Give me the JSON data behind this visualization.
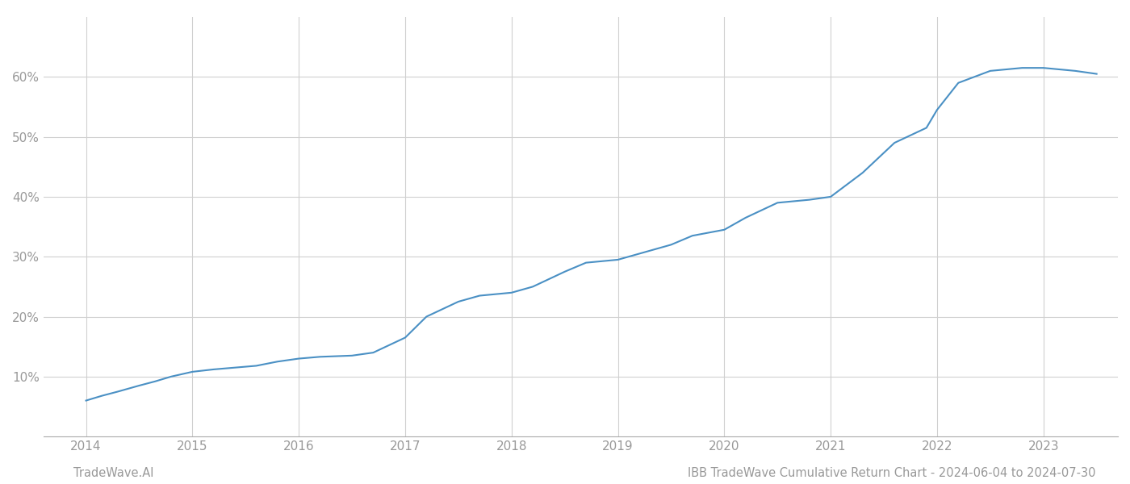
{
  "title": "",
  "footer_left": "TradeWave.AI",
  "footer_right": "IBB TradeWave Cumulative Return Chart - 2024-06-04 to 2024-07-30",
  "line_color": "#4a90c4",
  "line_width": 1.5,
  "background_color": "#ffffff",
  "grid_color": "#d0d0d0",
  "x_years": [
    2014,
    2015,
    2016,
    2017,
    2018,
    2019,
    2020,
    2021,
    2022,
    2023
  ],
  "x_values": [
    2014.0,
    2014.15,
    2014.3,
    2014.5,
    2014.65,
    2014.8,
    2015.0,
    2015.2,
    2015.4,
    2015.6,
    2015.8,
    2016.0,
    2016.2,
    2016.5,
    2016.7,
    2017.0,
    2017.2,
    2017.5,
    2017.7,
    2018.0,
    2018.2,
    2018.5,
    2018.7,
    2019.0,
    2019.2,
    2019.5,
    2019.7,
    2020.0,
    2020.2,
    2020.5,
    2020.8,
    2021.0,
    2021.3,
    2021.6,
    2021.9,
    2022.0,
    2022.2,
    2022.5,
    2022.8,
    2023.0,
    2023.3,
    2023.5
  ],
  "y_values": [
    6.0,
    6.8,
    7.5,
    8.5,
    9.2,
    10.0,
    10.8,
    11.2,
    11.5,
    11.8,
    12.5,
    13.0,
    13.3,
    13.5,
    14.0,
    16.5,
    20.0,
    22.5,
    23.5,
    24.0,
    25.0,
    27.5,
    29.0,
    29.5,
    30.5,
    32.0,
    33.5,
    34.5,
    36.5,
    39.0,
    39.5,
    40.0,
    44.0,
    49.0,
    51.5,
    54.5,
    59.0,
    61.0,
    61.5,
    61.5,
    61.0,
    60.5
  ],
  "ylim": [
    0,
    70
  ],
  "yticks": [
    10,
    20,
    30,
    40,
    50,
    60
  ],
  "xlim": [
    2013.6,
    2023.7
  ],
  "tick_label_color": "#999999",
  "tick_fontsize": 11,
  "footer_fontsize": 10.5
}
